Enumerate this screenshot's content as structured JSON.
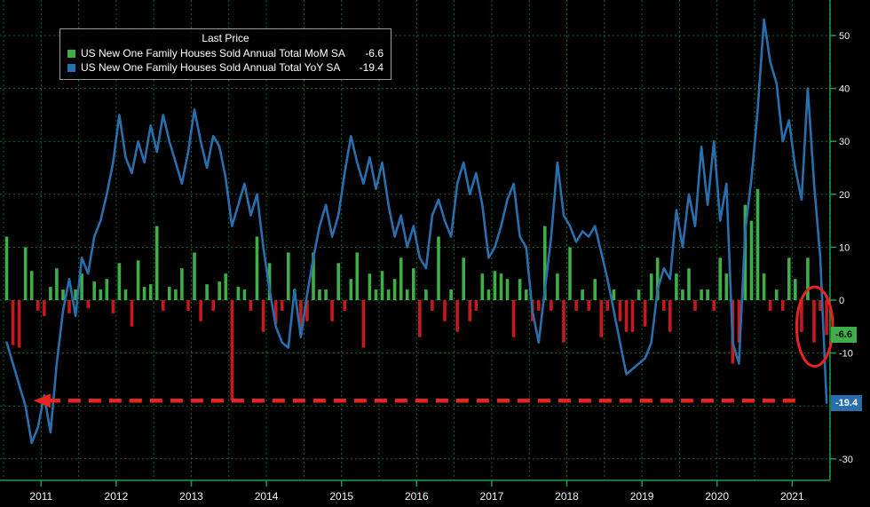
{
  "legend": {
    "title": "Last Price",
    "series": [
      {
        "label": "US New One Family Houses Sold Annual Total MoM SA",
        "value": "-6.6",
        "color": "#3fae49"
      },
      {
        "label": "US New One Family Houses Sold Annual Total YoY SA",
        "value": "-19.4",
        "color": "#2a6fad"
      }
    ]
  },
  "axes": {
    "y_tick_labels": [
      "50",
      "40",
      "30",
      "20",
      "10",
      "0",
      "-10",
      "-20",
      "-30"
    ],
    "x_tick_labels": [
      "2011",
      "2012",
      "2013",
      "2014",
      "2015",
      "2016",
      "2017",
      "2018",
      "2019",
      "2020",
      "2021"
    ]
  },
  "badges": [
    {
      "text": "-6.6",
      "value": -6.6,
      "bg": "#3fae49",
      "fg": "#000000"
    },
    {
      "text": "-19.4",
      "value": -19.4,
      "bg": "#2a6fad",
      "fg": "#ffffff"
    }
  ],
  "colors": {
    "background": "#000000",
    "grid": "#0d6b30",
    "axis": "#1b9e4b",
    "text": "#f2f2f2",
    "bar_positive": "#3fae49",
    "bar_negative": "#c8181c",
    "line": "#2a6fad",
    "annotation": "#e8241f"
  },
  "annotations": {
    "arrow": {
      "value": -19,
      "from_year": 2021.1,
      "to_year": 2010.9,
      "color": "#e8241f"
    },
    "ellipse": {
      "center_year": 2021.3,
      "center_value": -5,
      "rx_years": 0.24,
      "ry_units": 7.5,
      "color": "#e8241f"
    }
  },
  "chart_data": {
    "type": "combo",
    "title": "Last Price",
    "frequency": "monthly",
    "start_month": "2010-07",
    "end_month": "2021-06",
    "ylim": [
      -33,
      56
    ],
    "y_ticks": [
      50,
      40,
      30,
      20,
      10,
      0,
      -10,
      -20,
      -30
    ],
    "x_tick_years": [
      2011,
      2012,
      2013,
      2014,
      2015,
      2016,
      2017,
      2018,
      2019,
      2020,
      2021
    ],
    "grid": true,
    "legend_position": "top-left",
    "series": [
      {
        "name": "US New One Family Houses Sold Annual Total MoM SA",
        "type": "bar",
        "unit": "%",
        "last_value": -6.6,
        "values": [
          12,
          -8.5,
          -9,
          10,
          5.5,
          -2,
          -3,
          2.5,
          6,
          2,
          -2.5,
          2,
          5,
          -1.5,
          3.5,
          2,
          4,
          -2.5,
          7,
          2,
          -5,
          7.5,
          2.5,
          3,
          14,
          -2,
          2.5,
          2,
          6,
          -2,
          9,
          -4,
          3,
          -2,
          3.5,
          5,
          -19,
          2.5,
          2,
          -2,
          12,
          -6,
          7,
          -4.5,
          -2,
          9,
          2,
          -6,
          -4,
          9,
          2,
          2,
          -4,
          7,
          -2,
          4,
          9,
          -9,
          5,
          2,
          5.5,
          2,
          4,
          8,
          2,
          6,
          -7,
          2,
          -2,
          12,
          -4,
          2,
          -6,
          8,
          -4,
          -2,
          5,
          2,
          5.5,
          5,
          4,
          -7,
          4,
          2,
          -4,
          -2,
          14,
          -2,
          5,
          -8,
          10,
          -2,
          2,
          -2,
          4,
          -7,
          -2,
          2,
          -4,
          -6,
          -6,
          2,
          -5,
          5,
          8,
          -2,
          -6,
          5,
          2,
          6,
          -2,
          2,
          2,
          -2,
          8,
          5,
          -12,
          -8,
          18,
          15,
          21,
          5,
          -2,
          2,
          -2,
          8,
          4,
          -6,
          8,
          -8,
          -2,
          -6.6
        ]
      },
      {
        "name": "US New One Family Houses Sold Annual Total YoY SA",
        "type": "line",
        "unit": "%",
        "last_value": -19.4,
        "values": [
          -8,
          -12,
          -16,
          -20,
          -27,
          -24,
          -18,
          -25,
          -12,
          -2,
          4,
          -3,
          8,
          5,
          12,
          15,
          20,
          26,
          35,
          27,
          24,
          30,
          26,
          33,
          28,
          35,
          30,
          26,
          22,
          28,
          36,
          30,
          25,
          31,
          29,
          23,
          14,
          18,
          22,
          16,
          20,
          10,
          2,
          -5,
          -8,
          -9,
          2,
          -7,
          1,
          8,
          14,
          18,
          12,
          16,
          24,
          31,
          26,
          22,
          27,
          21,
          26,
          18,
          12,
          16,
          10,
          14,
          8,
          6,
          16,
          19,
          15,
          12,
          22,
          26,
          20,
          24,
          18,
          8,
          10,
          14,
          19,
          22,
          12,
          10,
          -2,
          -8,
          2,
          12,
          26,
          16,
          14,
          11,
          13,
          12,
          14,
          9,
          4,
          -2,
          -8,
          -14,
          -13,
          -12,
          -11,
          -8,
          2,
          6,
          4,
          17,
          10,
          20,
          14,
          29,
          18,
          30,
          15,
          22,
          -8,
          -12,
          13,
          23,
          36,
          53,
          45,
          41,
          30,
          34,
          25,
          19,
          40,
          22,
          8,
          -19.4
        ]
      }
    ]
  }
}
